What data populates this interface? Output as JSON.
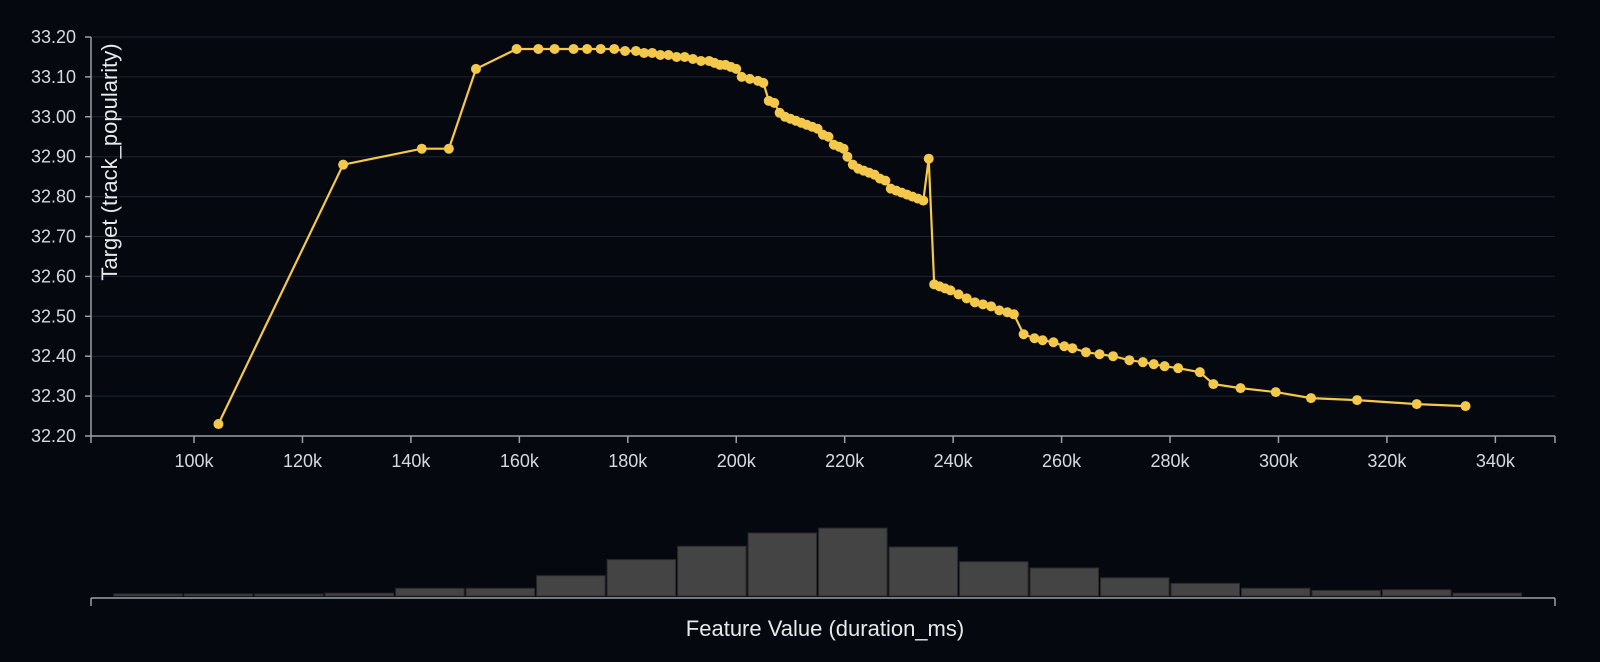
{
  "colors": {
    "background": "#05080f",
    "line": "#f4c84a",
    "bar": "#444444",
    "grid": "#1f2430",
    "axis": "#9aa0a8",
    "text": "#d6d9de"
  },
  "chart_data": [
    {
      "type": "line",
      "title": "",
      "ylabel": "Target (track_popularity)",
      "xlabel": "",
      "xlim": [
        81000,
        351000
      ],
      "ylim": [
        32.2,
        33.2
      ],
      "x_ticks": [
        100000,
        120000,
        140000,
        160000,
        180000,
        200000,
        220000,
        240000,
        260000,
        280000,
        300000,
        320000,
        340000
      ],
      "x_tick_labels": [
        "100k",
        "120k",
        "140k",
        "160k",
        "180k",
        "200k",
        "220k",
        "240k",
        "260k",
        "280k",
        "300k",
        "320k",
        "340k"
      ],
      "y_ticks": [
        32.2,
        32.3,
        32.4,
        32.5,
        32.6,
        32.7,
        32.8,
        32.9,
        33.0,
        33.1,
        33.2
      ],
      "y_tick_labels": [
        "32.20",
        "32.30",
        "32.40",
        "32.50",
        "32.60",
        "32.70",
        "32.80",
        "32.90",
        "33.00",
        "33.10",
        "33.20"
      ],
      "grid": true,
      "markers": true,
      "series": [
        {
          "x": [
            104500,
            127500,
            142000,
            147000,
            152000,
            159500,
            163500,
            166500,
            170000,
            172500,
            175000,
            177500,
            179500,
            181500,
            183000,
            184500,
            186000,
            187500,
            189000,
            190500,
            192000,
            193500,
            195000,
            196000,
            197000,
            198000,
            199000,
            200000,
            201000,
            202500,
            204000,
            205000,
            206000,
            207000,
            208000,
            209000,
            210000,
            211000,
            212000,
            213000,
            214000,
            215000,
            216000,
            217000,
            218000,
            219000,
            219800,
            220500,
            221500,
            222500,
            223500,
            224500,
            225500,
            226500,
            227500,
            228500,
            229500,
            230500,
            231500,
            232500,
            233500,
            234500,
            235500,
            236500,
            237500,
            238500,
            239500,
            241000,
            242500,
            244000,
            245500,
            247000,
            248500,
            250000,
            251200,
            253000,
            255000,
            256500,
            258500,
            260500,
            262000,
            264500,
            267000,
            269500,
            272500,
            275000,
            277000,
            279000,
            281500,
            285500,
            288000,
            293000,
            299500,
            306000,
            314500,
            325500,
            334500
          ],
          "values": [
            32.23,
            32.88,
            32.92,
            32.92,
            33.12,
            33.17,
            33.17,
            33.17,
            33.17,
            33.17,
            33.17,
            33.17,
            33.165,
            33.165,
            33.16,
            33.16,
            33.155,
            33.155,
            33.15,
            33.15,
            33.145,
            33.14,
            33.14,
            33.135,
            33.13,
            33.13,
            33.125,
            33.12,
            33.1,
            33.095,
            33.09,
            33.085,
            33.04,
            33.035,
            33.01,
            33.0,
            32.995,
            32.99,
            32.985,
            32.98,
            32.975,
            32.97,
            32.955,
            32.95,
            32.93,
            32.925,
            32.92,
            32.9,
            32.88,
            32.87,
            32.865,
            32.86,
            32.855,
            32.845,
            32.84,
            32.82,
            32.815,
            32.81,
            32.805,
            32.8,
            32.795,
            32.79,
            32.895,
            32.58,
            32.575,
            32.57,
            32.565,
            32.555,
            32.545,
            32.535,
            32.53,
            32.525,
            32.515,
            32.51,
            32.505,
            32.455,
            32.445,
            32.44,
            32.435,
            32.425,
            32.42,
            32.41,
            32.405,
            32.4,
            32.39,
            32.385,
            32.38,
            32.375,
            32.37,
            32.36,
            32.33,
            32.32,
            32.31,
            32.295,
            32.29,
            32.28,
            32.275
          ]
        }
      ]
    },
    {
      "type": "bar",
      "title": "",
      "xlabel": "Feature Value (duration_ms)",
      "ylabel": "",
      "ylim": [
        0,
        1
      ],
      "bin_edges": [
        85000,
        98000,
        111000,
        124000,
        137000,
        150000,
        163000,
        176000,
        189000,
        202000,
        215000,
        228000,
        241000,
        254000,
        267000,
        280000,
        293000,
        306000,
        319000,
        332000,
        345000
      ],
      "values": [
        0.03,
        0.03,
        0.02,
        0.04,
        0.11,
        0.11,
        0.29,
        0.52,
        0.71,
        0.9,
        0.97,
        0.7,
        0.49,
        0.4,
        0.26,
        0.18,
        0.11,
        0.08,
        0.09,
        0.04
      ]
    }
  ]
}
